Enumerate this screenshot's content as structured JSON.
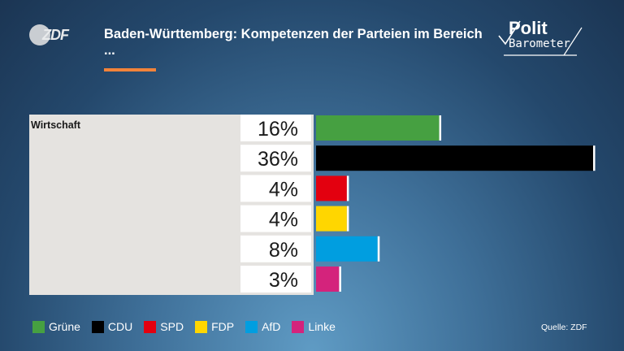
{
  "header": {
    "logo_text": "ZDF",
    "title": "Baden-Württemberg: Kompetenzen der Parteien im Bereich ...",
    "brand_line1": "Polit",
    "brand_line2": "Barometer"
  },
  "colors": {
    "Grüne": "#46a041",
    "CDU": "#000000",
    "SPD": "#e3000f",
    "FDP": "#ffd600",
    "AfD": "#009ee0",
    "Linke": "#d4237c",
    "accent": "#f2833a"
  },
  "chart_data": {
    "type": "bar",
    "orientation": "horizontal",
    "title": "Baden-Württemberg: Kompetenzen der Parteien im Bereich ...",
    "category": "Wirtschaft",
    "categories": [
      "Grüne",
      "CDU",
      "SPD",
      "FDP",
      "AfD",
      "Linke"
    ],
    "values": [
      16,
      36,
      4,
      4,
      8,
      3
    ],
    "value_labels": [
      "16%",
      "36%",
      "4%",
      "4%",
      "8%",
      "3%"
    ],
    "unit": "%",
    "xlim": [
      0,
      36
    ],
    "grid": false,
    "legend_position": "bottom-left"
  },
  "legend": {
    "items": [
      "Grüne",
      "CDU",
      "SPD",
      "FDP",
      "AfD",
      "Linke"
    ]
  },
  "footer": {
    "source": "Quelle: ZDF"
  }
}
